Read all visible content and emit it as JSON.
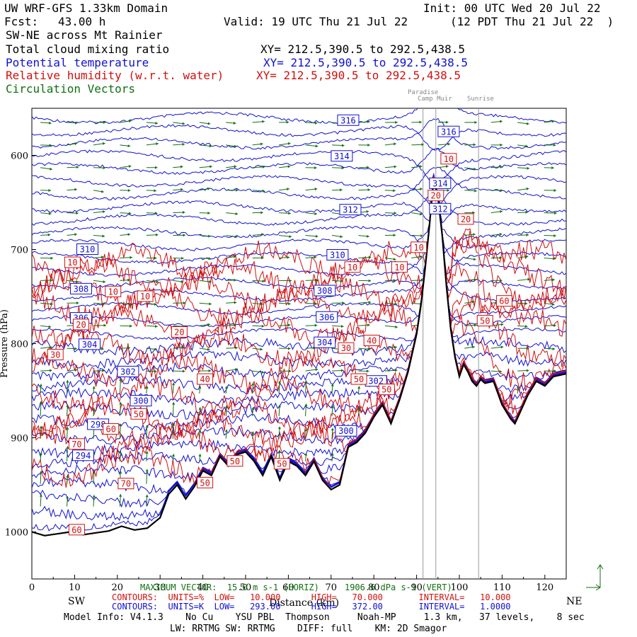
{
  "header": {
    "domain_title": "UW WRF-GFS 1.33km Domain",
    "init": "Init: 00 UTC Wed 20 Jul 22",
    "fcst_label": "Fcst:",
    "fcst_value": "43.00 h",
    "valid": "Valid: 19 UTC Thu 21 Jul 22",
    "local": "(12 PDT Thu 21 Jul 22  )"
  },
  "cross_section": {
    "name": "SW-NE across Mt Rainier"
  },
  "fields": [
    {
      "name": "Total cloud mixing ratio",
      "xy": "XY= 212.5,390.5 to 292.5,438.5",
      "color": "#000000"
    },
    {
      "name": "Potential temperature",
      "xy": "XY= 212.5,390.5 to 292.5,438.5",
      "color": "#1010d0"
    },
    {
      "name": "Relative humidity (w.r.t. water)",
      "xy": "XY= 212.5,390.5 to 292.5,438.5",
      "color": "#d01010"
    },
    {
      "name": "Circulation Vectors",
      "xy": "",
      "color": "#107010"
    }
  ],
  "landmarks": {
    "paradise": "Paradise",
    "camp_muir": "Camp Muir",
    "sunrise": "Sunrise",
    "x_km": [
      91.5,
      94.5,
      104.5
    ]
  },
  "footer": {
    "max_vector": "MAXIMUM VECTOR:  15.0 m s-1 (HORIZ)     1906.6 dPa s-1 (VERT)",
    "rh_contours": "CONTOURS:  UNITS=%  LOW=   10.000      HIGH=   70.000       INTERVAL=   10.000",
    "th_contours": "CONTOURS:  UNITS=K  LOW=   293.00      HIGH=   372.00       INTERVAL=   1.0000",
    "model_info": "Model Info: V4.1.3    No Cu    YSU PBL  Thompson     Noah-MP     1.3 km,   37 levels,    8 sec",
    "model_info2": "LW: RRTMG SW: RRTMG    DIFF: full    KM: 2D Smagor"
  },
  "chart_data": {
    "type": "contour-cross-section",
    "xlabel": "Distance (km)",
    "ylabel": "Pressure (hPa)",
    "x_range": [
      0,
      125
    ],
    "y_range": [
      1050,
      550
    ],
    "x_ticks": [
      "0",
      "10",
      "20",
      "30",
      "40",
      "50",
      "60",
      "70",
      "80",
      "90",
      "100",
      "110",
      "120"
    ],
    "y_ticks": [
      "600",
      "700",
      "800",
      "900",
      "1000"
    ],
    "x_end_labels": {
      "left": "SW",
      "right": "NE"
    },
    "terrain": {
      "x": [
        0,
        3,
        6,
        9,
        12,
        15,
        18,
        21,
        24,
        27,
        30,
        32,
        34,
        36,
        38,
        40,
        42,
        44,
        46,
        48,
        50,
        52,
        54,
        56,
        58,
        60,
        62,
        64,
        66,
        68,
        70,
        72,
        74,
        76,
        78,
        80,
        82,
        84,
        86,
        88,
        90,
        91,
        92,
        93,
        94,
        95,
        96,
        97,
        98,
        99,
        100,
        101,
        102,
        103,
        104,
        105,
        106,
        108,
        110,
        112,
        113,
        114,
        116,
        118,
        120,
        122,
        125
      ],
      "p": [
        1000,
        1004,
        1002,
        1000,
        1003,
        1001,
        999,
        994,
        998,
        996,
        985,
        960,
        950,
        965,
        952,
        935,
        940,
        920,
        930,
        918,
        915,
        925,
        940,
        920,
        945,
        925,
        930,
        940,
        925,
        945,
        955,
        950,
        910,
        905,
        895,
        878,
        865,
        885,
        860,
        830,
        790,
        760,
        720,
        675,
        625,
        645,
        685,
        740,
        785,
        815,
        835,
        822,
        830,
        840,
        845,
        838,
        842,
        840,
        865,
        880,
        885,
        875,
        855,
        840,
        845,
        835,
        832
      ]
    },
    "theta_labels": [
      {
        "v": "316",
        "x": 74,
        "p": 563
      },
      {
        "v": "316",
        "x": 97.5,
        "p": 575
      },
      {
        "v": "314",
        "x": 72.5,
        "p": 601
      },
      {
        "v": "314",
        "x": 95.5,
        "p": 630
      },
      {
        "v": "312",
        "x": 74.5,
        "p": 658
      },
      {
        "v": "312",
        "x": 95.5,
        "p": 657
      },
      {
        "v": "310",
        "x": 13,
        "p": 700
      },
      {
        "v": "310",
        "x": 71.5,
        "p": 706
      },
      {
        "v": "308",
        "x": 11.5,
        "p": 742
      },
      {
        "v": "308",
        "x": 68.5,
        "p": 744
      },
      {
        "v": "306",
        "x": 11.5,
        "p": 773
      },
      {
        "v": "306",
        "x": 69,
        "p": 772
      },
      {
        "v": "304",
        "x": 13.5,
        "p": 801
      },
      {
        "v": "304",
        "x": 68.5,
        "p": 799
      },
      {
        "v": "302",
        "x": 22.5,
        "p": 830
      },
      {
        "v": "302",
        "x": 80.5,
        "p": 840
      },
      {
        "v": "300",
        "x": 25.5,
        "p": 861
      },
      {
        "v": "300",
        "x": 73.5,
        "p": 893
      },
      {
        "v": "298",
        "x": 15.5,
        "p": 886
      },
      {
        "v": "294",
        "x": 12,
        "p": 919
      }
    ],
    "rh_labels": [
      {
        "v": "10",
        "x": 9.5,
        "p": 714
      },
      {
        "v": "10",
        "x": 19,
        "p": 745
      },
      {
        "v": "10",
        "x": 26.5,
        "p": 750
      },
      {
        "v": "10",
        "x": 75,
        "p": 719
      },
      {
        "v": "10",
        "x": 86,
        "p": 719
      },
      {
        "v": "10",
        "x": 90.5,
        "p": 698
      },
      {
        "v": "10",
        "x": 97.5,
        "p": 604
      },
      {
        "v": "20",
        "x": 94.5,
        "p": 643
      },
      {
        "v": "20",
        "x": 101.5,
        "p": 668
      },
      {
        "v": "20",
        "x": 11.5,
        "p": 780
      },
      {
        "v": "20",
        "x": 34.5,
        "p": 788
      },
      {
        "v": "30",
        "x": 5.5,
        "p": 812
      },
      {
        "v": "30",
        "x": 73.5,
        "p": 805
      },
      {
        "v": "40",
        "x": 79.5,
        "p": 797
      },
      {
        "v": "40",
        "x": 40.5,
        "p": 838
      },
      {
        "v": "50",
        "x": 76.5,
        "p": 838
      },
      {
        "v": "50",
        "x": 83,
        "p": 849
      },
      {
        "v": "50",
        "x": 25,
        "p": 875
      },
      {
        "v": "50",
        "x": 47.5,
        "p": 925
      },
      {
        "v": "50",
        "x": 58.5,
        "p": 928
      },
      {
        "v": "50",
        "x": 40.5,
        "p": 948
      },
      {
        "v": "50",
        "x": 106,
        "p": 776
      },
      {
        "v": "60",
        "x": 110.5,
        "p": 755
      },
      {
        "v": "60",
        "x": 18.5,
        "p": 891
      },
      {
        "v": "60",
        "x": 10.5,
        "p": 998
      },
      {
        "v": "70",
        "x": 10.5,
        "p": 907
      },
      {
        "v": "70",
        "x": 22,
        "p": 949
      }
    ]
  }
}
